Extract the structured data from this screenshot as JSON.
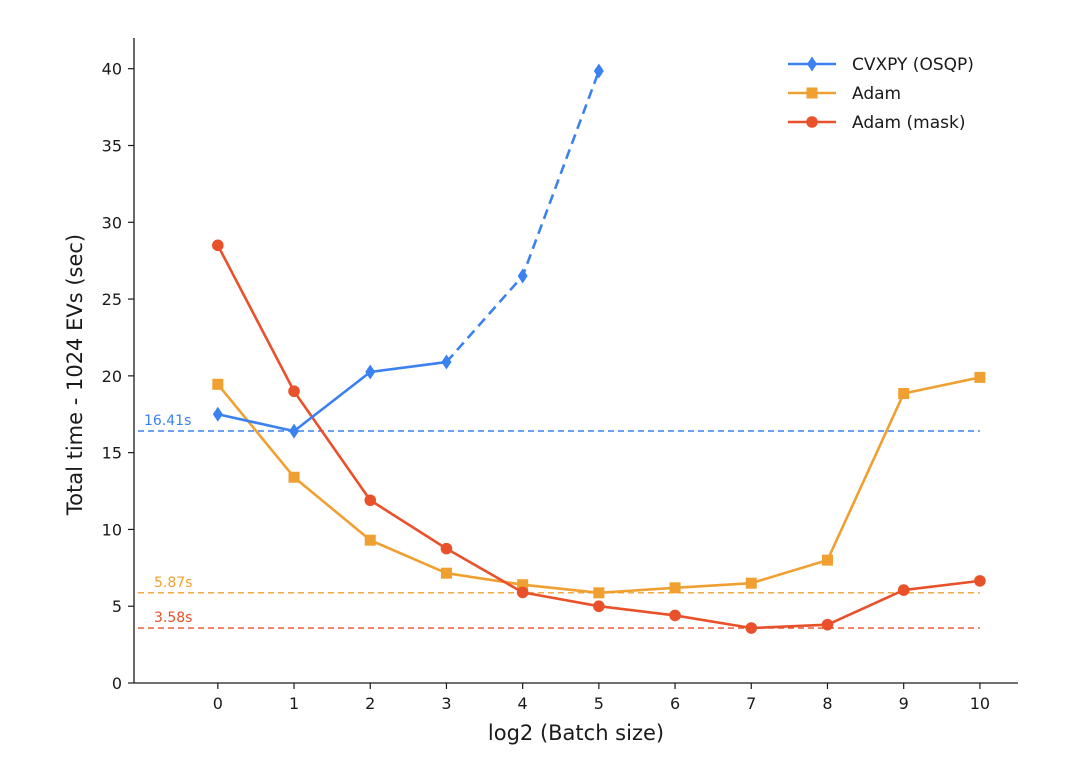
{
  "chart_data": {
    "type": "line",
    "xlabel": "log2 (Batch size)",
    "ylabel": "Total time - 1024 EVs (sec)",
    "xlim": [
      -1.1,
      10.5
    ],
    "ylim": [
      0,
      42
    ],
    "xticks": [
      0,
      1,
      2,
      3,
      4,
      5,
      6,
      7,
      8,
      9,
      10
    ],
    "yticks": [
      0,
      5,
      10,
      15,
      20,
      25,
      30,
      35,
      40
    ],
    "grid": false,
    "legend_position": "top-right",
    "series": [
      {
        "name": "CVXPY (OSQP)",
        "color": "#3b82f0",
        "marker": "diamond",
        "x": [
          0,
          1,
          2,
          3,
          4,
          5
        ],
        "y": [
          17.5,
          16.4,
          20.25,
          20.9,
          26.5,
          39.85
        ],
        "solid_until_index": 3
      },
      {
        "name": "Adam",
        "color": "#f0a030",
        "marker": "square",
        "x": [
          0,
          1,
          2,
          3,
          4,
          5,
          6,
          7,
          8,
          9,
          10
        ],
        "y": [
          19.45,
          13.4,
          9.3,
          7.15,
          6.4,
          5.87,
          6.2,
          6.5,
          8.0,
          18.85,
          19.9
        ]
      },
      {
        "name": "Adam (mask)",
        "color": "#e8512a",
        "marker": "circle",
        "x": [
          0,
          1,
          2,
          3,
          4,
          5,
          6,
          7,
          8,
          9,
          10
        ],
        "y": [
          28.5,
          19.0,
          11.9,
          8.75,
          5.9,
          5.0,
          4.4,
          3.58,
          3.8,
          6.05,
          6.65
        ]
      }
    ],
    "reference_lines": [
      {
        "y": 16.41,
        "label": "16.41s",
        "color": "#3b82f0"
      },
      {
        "y": 5.87,
        "label": "5.87s",
        "color": "#f0a030"
      },
      {
        "y": 3.58,
        "label": "3.58s",
        "color": "#e8512a"
      }
    ]
  }
}
